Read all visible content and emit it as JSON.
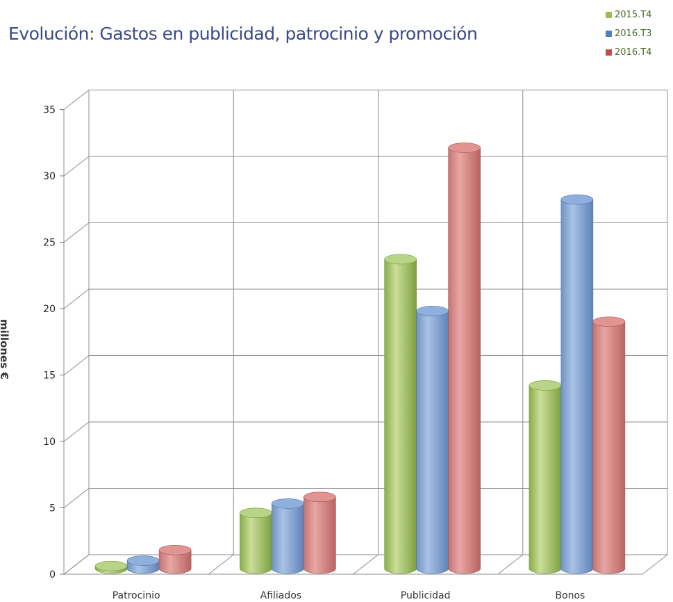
{
  "chart_data": {
    "type": "bar",
    "title": "Evolución: Gastos en publicidad, patrocinio y promoción",
    "xlabel": "",
    "ylabel": "millones €",
    "categories": [
      "Patrocinio",
      "Afiliados",
      "Publicidad",
      "Bonos"
    ],
    "series": [
      {
        "name": "2015.T4",
        "values": [
          0.2,
          4.2,
          23.3,
          13.8
        ]
      },
      {
        "name": "2016.T3",
        "values": [
          0.6,
          4.9,
          19.4,
          27.8
        ]
      },
      {
        "name": "2016.T4",
        "values": [
          1.4,
          5.4,
          31.7,
          18.6
        ]
      }
    ],
    "ylim": [
      0,
      35
    ],
    "yticks": [
      0,
      5,
      10,
      15,
      20,
      25,
      30,
      35
    ],
    "grid": true,
    "legend_position": "top-right",
    "colors": [
      "#9bbb59",
      "#4f81bd",
      "#c0504d"
    ]
  }
}
